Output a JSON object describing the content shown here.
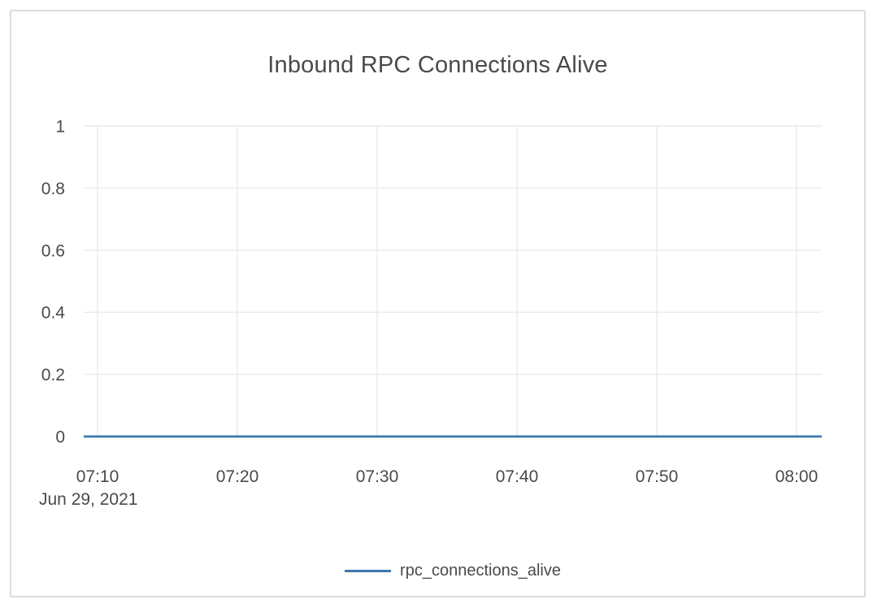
{
  "chart_data": {
    "type": "line",
    "title": "Inbound RPC Connections Alive",
    "x": [
      "07:10",
      "07:20",
      "07:30",
      "07:40",
      "07:50",
      "08:00"
    ],
    "date_label": "Jun 29, 2021",
    "series": [
      {
        "name": "rpc_connections_alive",
        "values": [
          0,
          0,
          0,
          0,
          0,
          0
        ],
        "color": "#3d76ad"
      }
    ],
    "xlabel": "Jun 29, 2021",
    "ylabel": "",
    "ylim": [
      0,
      1
    ],
    "yticks": [
      "0",
      "0.2",
      "0.4",
      "0.6",
      "0.8",
      "1"
    ],
    "grid": true,
    "legend_position": "bottom-center",
    "colors": {
      "grid": "#eaeaea",
      "text": "#4a4a4a",
      "border": "#dcdcdc",
      "background": "#ffffff"
    }
  }
}
